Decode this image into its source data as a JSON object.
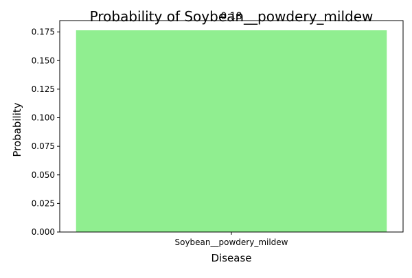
{
  "chart_data": {
    "type": "bar",
    "title": "Probability of Soybean__powdery_mildew",
    "xlabel": "Disease",
    "ylabel": "Probability",
    "categories": [
      "Soybean__powdery_mildew"
    ],
    "values": [
      0.1765
    ],
    "data_labels": [
      "0.18"
    ],
    "ylim": [
      0,
      0.185
    ],
    "yticks": [
      0.0,
      0.025,
      0.05,
      0.075,
      0.1,
      0.125,
      0.15,
      0.175
    ],
    "ytick_labels": [
      "0.000",
      "0.025",
      "0.050",
      "0.075",
      "0.100",
      "0.125",
      "0.150",
      "0.175"
    ],
    "grid": false,
    "bar_color": "#90ee90"
  }
}
